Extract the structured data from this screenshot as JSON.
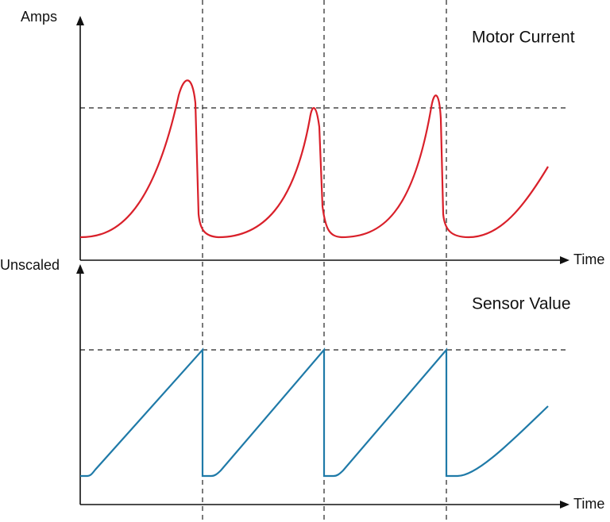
{
  "top_panel": {
    "y_label": "Amps",
    "title": "Motor Current",
    "x_label": "Time"
  },
  "bottom_panel": {
    "y_label": "Unscaled",
    "title": "Sensor Value",
    "x_label": "Time"
  }
}
